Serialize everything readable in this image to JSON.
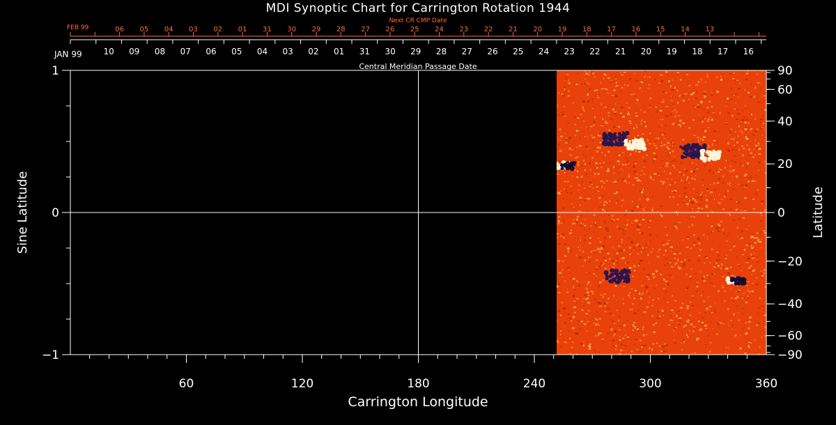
{
  "chart_data": {
    "type": "heatmap",
    "title": "MDI Synoptic Chart for Carrington Rotation 1944",
    "xlabel": "Carrington Longitude",
    "ylabel": "Sine Latitude",
    "y2label": "Latitude",
    "top_axis_label": "Central Meridian Passage Date",
    "next_axis_label": "Next CR CMP Date",
    "xlim": [
      0,
      360
    ],
    "ylim": [
      -1,
      1
    ],
    "x_ticks": [
      60,
      120,
      180,
      240,
      300,
      360
    ],
    "x_tick_labels": [
      "60",
      "120",
      "180",
      "240",
      "300",
      "360"
    ],
    "y_ticks": [
      -1,
      0,
      1
    ],
    "y_tick_labels": [
      "−1",
      "0",
      "1"
    ],
    "lat_ticks": [
      90,
      60,
      40,
      20,
      0,
      -20,
      -40,
      -60,
      -90
    ],
    "lat_tick_labels": [
      "90",
      "60",
      "40",
      "20",
      "0",
      "−20",
      "−40",
      "−60",
      "−90"
    ],
    "data_coverage_longitude": [
      251,
      360
    ],
    "cmp_month_label": "JAN 99",
    "cmp_dates": [
      "10",
      "09",
      "08",
      "07",
      "06",
      "05",
      "04",
      "03",
      "02",
      "01",
      "31",
      "30",
      "29",
      "28",
      "27",
      "26",
      "25",
      "24",
      "23",
      "22",
      "21",
      "20",
      "19",
      "18",
      "17",
      "16"
    ],
    "next_month_label": "FEB 99",
    "next_dates": [
      "06",
      "05",
      "04",
      "03",
      "02",
      "01",
      "31",
      "30",
      "29",
      "28",
      "27",
      "26",
      "25",
      "24",
      "23",
      "22",
      "21",
      "20",
      "19",
      "18",
      "17",
      "16",
      "15",
      "14",
      "13"
    ],
    "gridlines": {
      "x": [
        180
      ],
      "y": [
        0
      ]
    },
    "active_regions": [
      {
        "lon": 282,
        "sinlat": 0.52,
        "polarity": "negative"
      },
      {
        "lon": 292,
        "sinlat": 0.48,
        "polarity": "positive"
      },
      {
        "lon": 256,
        "sinlat": 0.33,
        "polarity": "mixed"
      },
      {
        "lon": 322,
        "sinlat": 0.43,
        "polarity": "negative"
      },
      {
        "lon": 331,
        "sinlat": 0.4,
        "polarity": "positive"
      },
      {
        "lon": 283,
        "sinlat": -0.45,
        "polarity": "negative"
      },
      {
        "lon": 344,
        "sinlat": -0.48,
        "polarity": "mixed"
      }
    ],
    "colors": {
      "background": "#000000",
      "axis": "#ffffff",
      "next_cr": "#ff6a3a",
      "field_base": "#e8410a"
    }
  }
}
